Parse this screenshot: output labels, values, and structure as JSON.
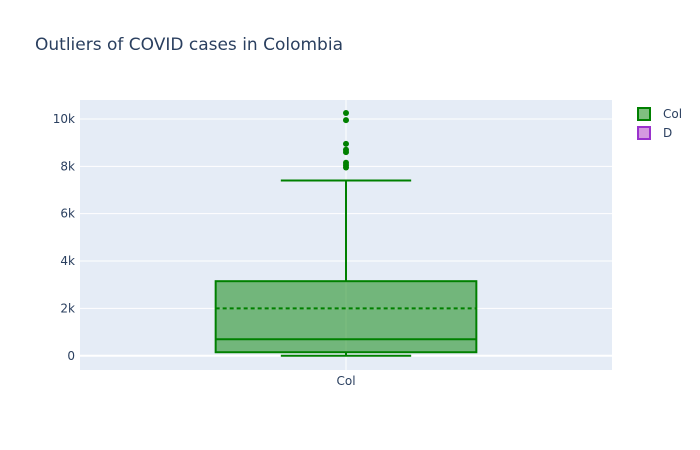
{
  "chart_data": {
    "type": "box",
    "title": "Outliers of COVID cases in Colombia",
    "xlabel": "",
    "ylabel": "",
    "categories": [
      "Col"
    ],
    "ylim": [
      -600,
      10800
    ],
    "yticks": [
      0,
      2000,
      4000,
      6000,
      8000,
      10000
    ],
    "ytick_labels": [
      "0",
      "2k",
      "4k",
      "6k",
      "8k",
      "10k"
    ],
    "grid": true,
    "legend_position": "top-right",
    "legend": [
      {
        "name": "Col",
        "fill": "#7fbf7f",
        "stroke": "#008000"
      },
      {
        "name": "D",
        "fill": "#d59ae0",
        "stroke": "#9a32cd"
      }
    ],
    "series": [
      {
        "name": "Col",
        "category": "Col",
        "color": "#008000",
        "min": 0,
        "q1": 150,
        "median": 700,
        "mean": 2000,
        "q3": 3150,
        "upper_fence": 7400,
        "outliers": [
          7950,
          8050,
          8150,
          8600,
          8700,
          8950,
          9950,
          10250
        ]
      }
    ]
  }
}
